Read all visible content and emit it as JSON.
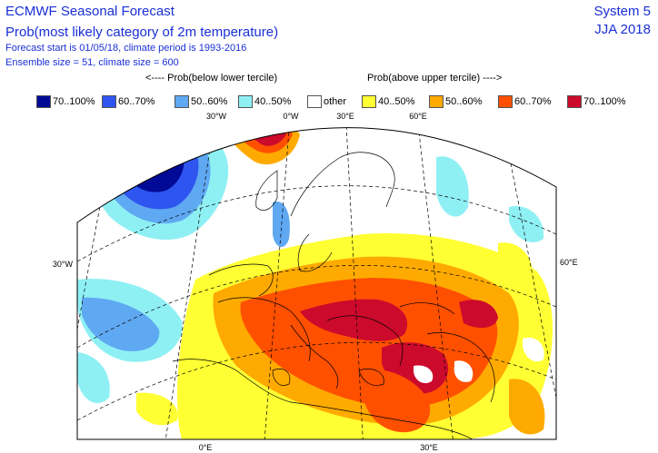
{
  "header": {
    "title": "ECMWF Seasonal Forecast",
    "subtitle": "Prob(most likely category of 2m temperature)",
    "forecast_info": "Forecast start is 01/05/18, climate period is 1993-2016",
    "ensemble_info": "Ensemble size = 51, climate size = 600",
    "system": "System 5",
    "season": "JJA 2018"
  },
  "legend": {
    "below_heading": "<---- Prob(below lower tercile)",
    "above_heading": "Prob(above upper tercile) ---->",
    "items": [
      {
        "label": "70..100%",
        "color": "#000a96",
        "category": "below"
      },
      {
        "label": "60..70%",
        "color": "#2e55ef",
        "category": "below"
      },
      {
        "label": "50..60%",
        "color": "#5fa8f2",
        "category": "below"
      },
      {
        "label": "40..50%",
        "color": "#8ff0f4",
        "category": "below"
      },
      {
        "label": "other",
        "color": "#ffffff",
        "category": "neutral"
      },
      {
        "label": "40..50%",
        "color": "#ffff33",
        "category": "above"
      },
      {
        "label": "50..60%",
        "color": "#ffaa00",
        "category": "above"
      },
      {
        "label": "60..70%",
        "color": "#ff5000",
        "category": "above"
      },
      {
        "label": "70..100%",
        "color": "#cc0a2c",
        "category": "above"
      }
    ]
  },
  "map": {
    "region": "Europe",
    "ticks": {
      "top": [
        "30°W",
        "0°W",
        "30°E",
        "60°E"
      ],
      "left": "30°W",
      "right": "60°E",
      "bottom": [
        "0°E",
        "30°E"
      ]
    }
  }
}
